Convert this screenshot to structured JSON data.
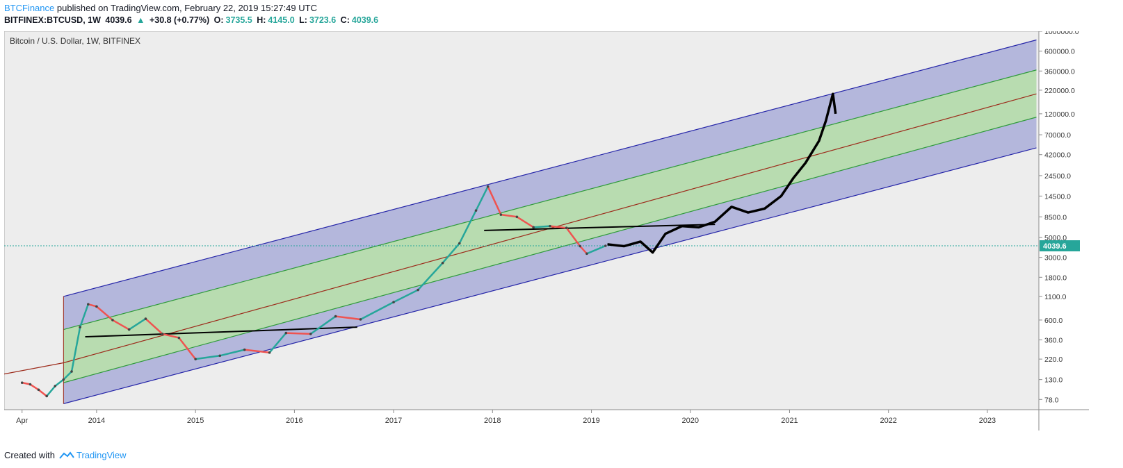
{
  "header": {
    "publisher": "BTCFinance",
    "published_text": "published on TradingView.com, February 22, 2019 15:27:49 UTC",
    "symbol": "BITFINEX:BTCUSD, 1W",
    "last": "4039.6",
    "change": "+30.8 (+0.77%)",
    "open_label": "O:",
    "open": "3735.5",
    "high_label": "H:",
    "high": "4145.0",
    "low_label": "L:",
    "low": "3723.6",
    "close_label": "C:",
    "close": "4039.6"
  },
  "footer": {
    "created_with": "Created with",
    "brand": "TradingView"
  },
  "chart_data": {
    "type": "line",
    "title": "Bitcoin / U.S. Dollar, 1W, BITFINEX",
    "yscale": "log",
    "ylim": [
      60,
      1000000
    ],
    "xlim": [
      "2013-01-25",
      "2023-07-10"
    ],
    "y_ticks": [
      "1000000.0",
      "600000.0",
      "360000.0",
      "220000.0",
      "120000.0",
      "70000.0",
      "42000.0",
      "24500.0",
      "14500.0",
      "8500.0",
      "5000.0",
      "3000.0",
      "1800.0",
      "1100.0",
      "600.0",
      "360.0",
      "220.0",
      "130.0",
      "78.0"
    ],
    "x_ticks": [
      {
        "label": "Apr",
        "date": "2013-04-01"
      },
      {
        "label": "2014",
        "date": "2014-01-01"
      },
      {
        "label": "2015",
        "date": "2015-01-01"
      },
      {
        "label": "2016",
        "date": "2016-01-01"
      },
      {
        "label": "2017",
        "date": "2017-01-01"
      },
      {
        "label": "2018",
        "date": "2018-01-01"
      },
      {
        "label": "2019",
        "date": "2019-01-01"
      },
      {
        "label": "2020",
        "date": "2020-01-01"
      },
      {
        "label": "2021",
        "date": "2021-01-01"
      },
      {
        "label": "2022",
        "date": "2022-01-01"
      },
      {
        "label": "2023",
        "date": "2023-01-01"
      }
    ],
    "current_price": 4039.6,
    "price_series": [
      {
        "date": "2013-04-01",
        "value": 120
      },
      {
        "date": "2013-05-01",
        "value": 115
      },
      {
        "date": "2013-06-01",
        "value": 100
      },
      {
        "date": "2013-07-01",
        "value": 85
      },
      {
        "date": "2013-08-01",
        "value": 110
      },
      {
        "date": "2013-09-01",
        "value": 130
      },
      {
        "date": "2013-10-01",
        "value": 160
      },
      {
        "date": "2013-11-01",
        "value": 500
      },
      {
        "date": "2013-12-01",
        "value": 900
      },
      {
        "date": "2014-01-01",
        "value": 850
      },
      {
        "date": "2014-03-01",
        "value": 600
      },
      {
        "date": "2014-05-01",
        "value": 470
      },
      {
        "date": "2014-07-01",
        "value": 620
      },
      {
        "date": "2014-09-01",
        "value": 420
      },
      {
        "date": "2014-11-01",
        "value": 380
      },
      {
        "date": "2015-01-01",
        "value": 220
      },
      {
        "date": "2015-04-01",
        "value": 240
      },
      {
        "date": "2015-07-01",
        "value": 280
      },
      {
        "date": "2015-10-01",
        "value": 260
      },
      {
        "date": "2015-12-01",
        "value": 430
      },
      {
        "date": "2016-03-01",
        "value": 420
      },
      {
        "date": "2016-06-01",
        "value": 660
      },
      {
        "date": "2016-09-01",
        "value": 610
      },
      {
        "date": "2017-01-01",
        "value": 950
      },
      {
        "date": "2017-04-01",
        "value": 1300
      },
      {
        "date": "2017-07-01",
        "value": 2600
      },
      {
        "date": "2017-09-01",
        "value": 4300
      },
      {
        "date": "2017-11-01",
        "value": 10000
      },
      {
        "date": "2017-12-15",
        "value": 18500
      },
      {
        "date": "2018-02-01",
        "value": 9000
      },
      {
        "date": "2018-04-01",
        "value": 8500
      },
      {
        "date": "2018-06-01",
        "value": 6500
      },
      {
        "date": "2018-08-01",
        "value": 6700
      },
      {
        "date": "2018-10-01",
        "value": 6400
      },
      {
        "date": "2018-11-20",
        "value": 4000
      },
      {
        "date": "2018-12-15",
        "value": 3300
      },
      {
        "date": "2019-02-22",
        "value": 4039.6
      }
    ],
    "projection_series": [
      {
        "date": "2019-03-01",
        "value": 4200
      },
      {
        "date": "2019-05-01",
        "value": 4000
      },
      {
        "date": "2019-07-01",
        "value": 4500
      },
      {
        "date": "2019-08-15",
        "value": 3400
      },
      {
        "date": "2019-10-01",
        "value": 5500
      },
      {
        "date": "2019-12-01",
        "value": 6700
      },
      {
        "date": "2020-02-01",
        "value": 6500
      },
      {
        "date": "2020-04-01",
        "value": 7500
      },
      {
        "date": "2020-06-01",
        "value": 11000
      },
      {
        "date": "2020-08-01",
        "value": 9500
      },
      {
        "date": "2020-10-01",
        "value": 10500
      },
      {
        "date": "2020-12-01",
        "value": 14500
      },
      {
        "date": "2021-01-15",
        "value": 23000
      },
      {
        "date": "2021-03-01",
        "value": 34000
      },
      {
        "date": "2021-04-20",
        "value": 60000
      },
      {
        "date": "2021-05-15",
        "value": 100000
      },
      {
        "date": "2021-06-10",
        "value": 200000
      },
      {
        "date": "2021-06-20",
        "value": 120000
      }
    ],
    "channel": {
      "start_date": "2013-09-01",
      "end_date": "2023-07-01",
      "upper": {
        "start": 1100,
        "end": 800000
      },
      "upper_inner": {
        "start": 470,
        "end": 370000
      },
      "middle": {
        "start": 200,
        "end": 200000
      },
      "lower_inner": {
        "start": 120,
        "end": 110000
      },
      "lower": {
        "start": 70,
        "end": 50000
      },
      "colors": {
        "outer": "#b4b7dc",
        "inner": "#b8dcb0",
        "outer_line": "#2424a8",
        "inner_line": "#2e9a3a",
        "mid_line": "#9c2a1a"
      }
    },
    "trendline_extension": {
      "start_date": "2013-01-25",
      "start_value": 150,
      "end_date": "2013-09-01",
      "end_value": 200
    },
    "support_lines": [
      {
        "start_date": "2013-11-20",
        "start_value": 390,
        "end_date": "2016-08-20",
        "end_value": 500
      },
      {
        "start_date": "2017-12-01",
        "start_value": 6000,
        "end_date": "2020-04-01",
        "end_value": 7000
      }
    ],
    "up_color": "#26a69a",
    "down_color": "#ef5350"
  }
}
